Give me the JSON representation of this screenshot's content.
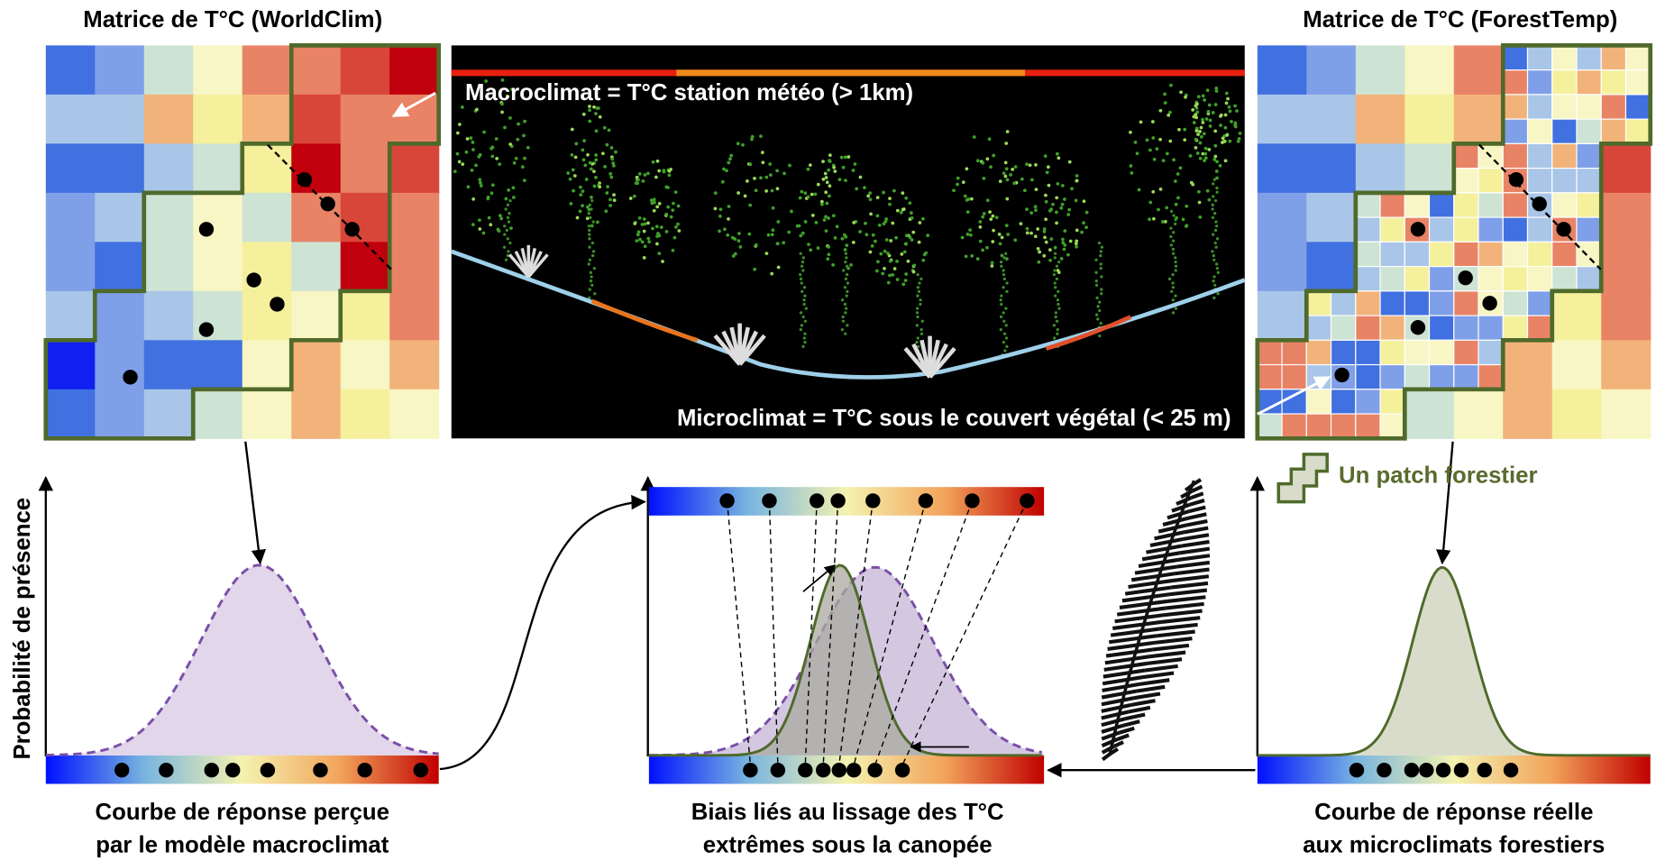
{
  "left_matrix": {
    "title": "Matrice de T°C (WorldClim)"
  },
  "right_matrix": {
    "title": "Matrice de T°C (ForestTemp)"
  },
  "photo": {
    "macroclimate": "Macroclimat = T°C station météo (> 1km)",
    "microclimate": "Microclimat = T°C sous le couvert végétal (< 25 m)"
  },
  "legend": {
    "patch": "Un patch forestier"
  },
  "y_axis_label": "Probabilité de présence",
  "captions": {
    "left": [
      "Courbe de réponse perçue",
      "par le modèle macroclimat"
    ],
    "middle": [
      "Biais liés au lissage des T°C",
      "extrêmes sous la canopée"
    ],
    "right": [
      "Courbe de réponse réelle",
      "aux microclimats forestiers"
    ]
  }
}
